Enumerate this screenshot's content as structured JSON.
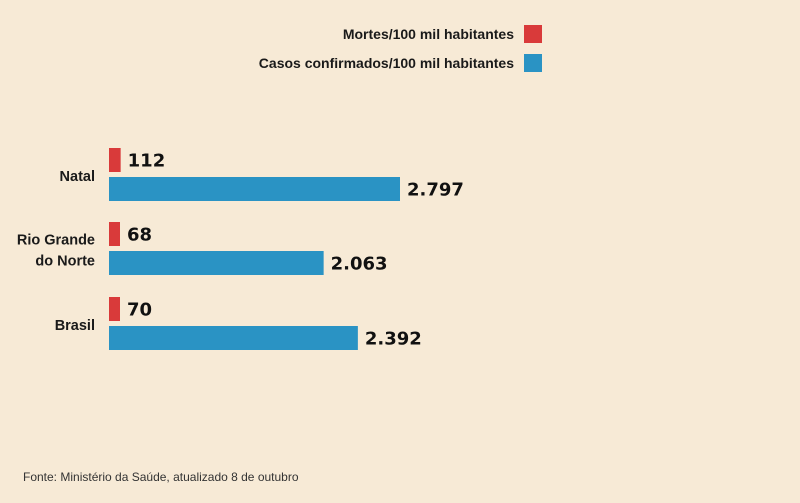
{
  "chart_data": {
    "type": "bar",
    "orientation": "horizontal",
    "categories": [
      [
        "Natal"
      ],
      [
        "Rio Grande",
        "do Norte"
      ],
      [
        "Brasil"
      ]
    ],
    "series": [
      {
        "name": "Mortes/100 mil habitantes",
        "color": "#d93a3a",
        "values": [
          112,
          68,
          70
        ],
        "labels": [
          "112",
          "68",
          "70"
        ]
      },
      {
        "name": "Casos confirmados/100 mil habitantes",
        "color": "#2a93c4",
        "values": [
          2797,
          2063,
          2392
        ],
        "labels": [
          "2.797",
          "2.063",
          "2.392"
        ]
      }
    ],
    "xlim": [
      0,
      3000
    ],
    "legend_position": "top-right",
    "grid": false
  },
  "source": "Fonte: Ministério da Saúde, atualizado 8 de outubro"
}
